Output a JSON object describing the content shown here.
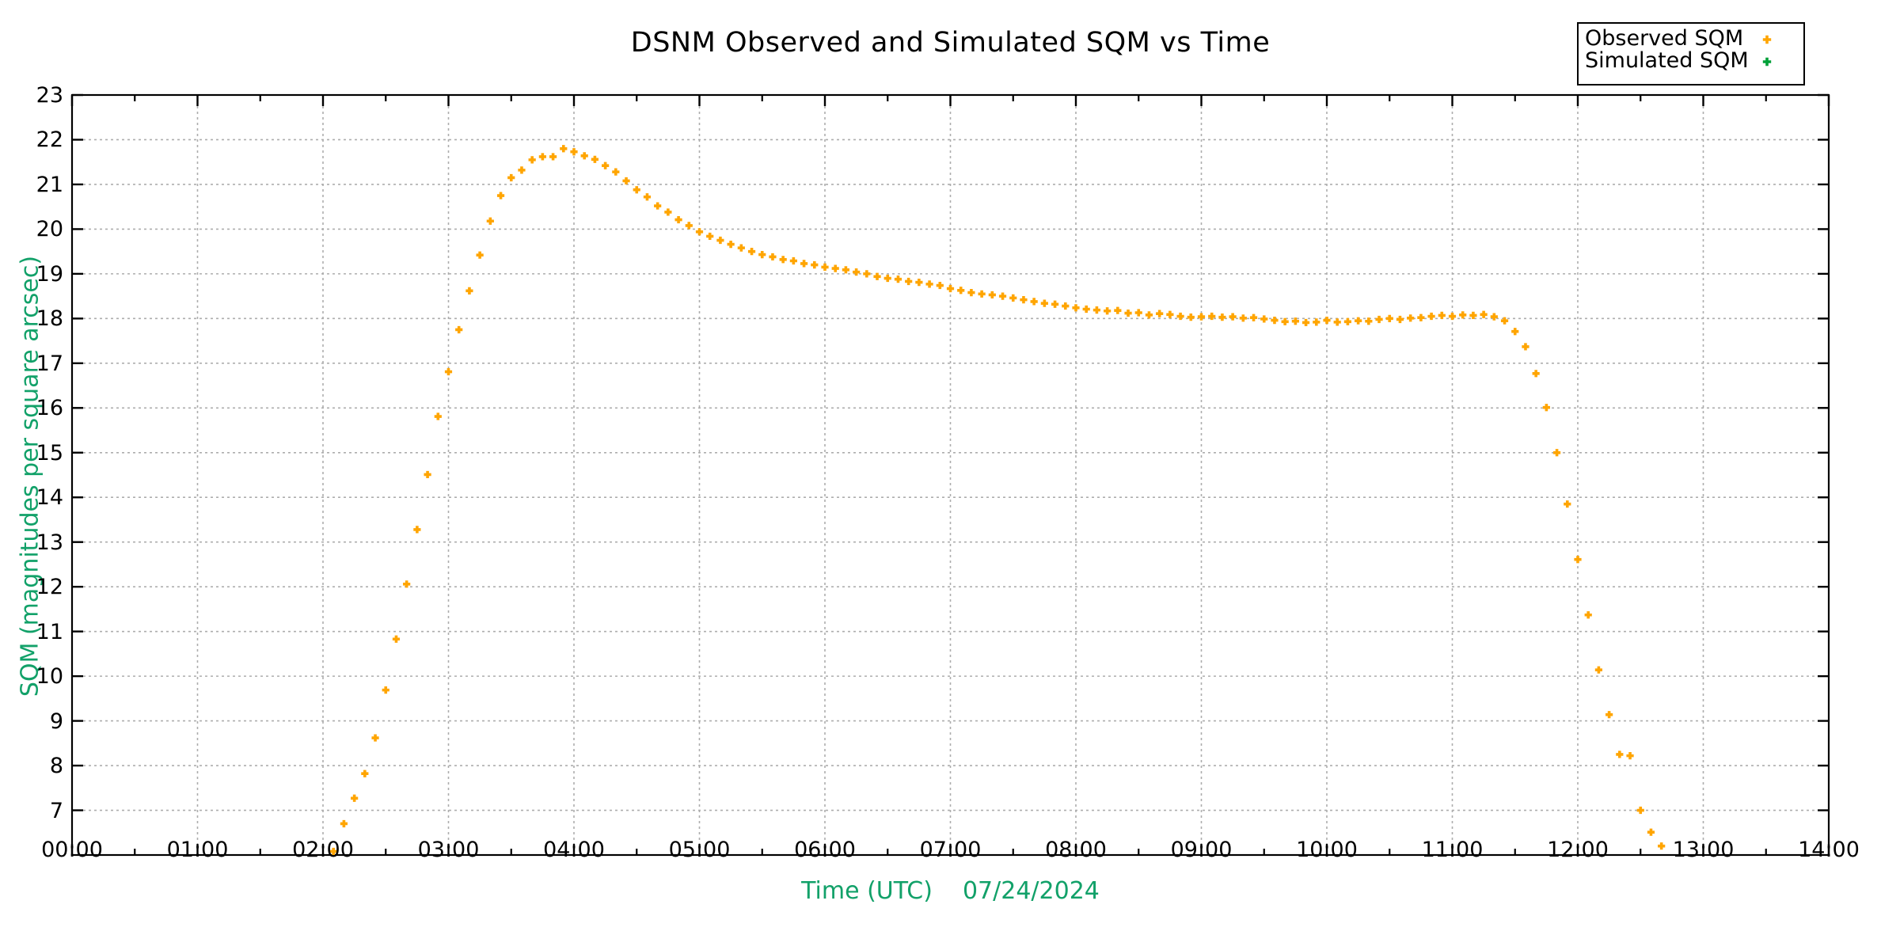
{
  "title": "DSNM Observed and Simulated SQM vs Time",
  "axes": {
    "x_label": "Time (UTC)",
    "x_date": "07/24/2024",
    "y_label": "SQM (magnitudes per square arcsec)",
    "x_ticks": [
      "00:00",
      "01:00",
      "02:00",
      "03:00",
      "04:00",
      "05:00",
      "06:00",
      "07:00",
      "08:00",
      "09:00",
      "10:00",
      "11:00",
      "12:00",
      "13:00",
      "14:00"
    ],
    "y_ticks": [
      7,
      8,
      9,
      10,
      11,
      12,
      13,
      14,
      15,
      16,
      17,
      18,
      19,
      20,
      21,
      22,
      23
    ]
  },
  "legend": {
    "items": [
      {
        "label": "Observed SQM",
        "color": "#FFA500"
      },
      {
        "label": "Simulated SQM",
        "color": "#00A038"
      }
    ]
  },
  "colors": {
    "observed": "#FFA500",
    "simulated": "#00A038",
    "axis_label_green": "#12A169",
    "grid": "#ADADAD",
    "border": "#000000",
    "background": "#FFFFFF"
  },
  "chart_data": {
    "type": "scatter",
    "title": "DSNM Observed and Simulated SQM vs Time",
    "xlabel": "Time (UTC)   07/24/2024",
    "ylabel": "SQM (magnitudes per square arcsec)",
    "xlim_hours": [
      0,
      14
    ],
    "ylim": [
      6,
      23
    ],
    "grid": true,
    "legend_position": "top-right",
    "marker": "small filled plus-dot",
    "point_interval_minutes": 5,
    "series": [
      {
        "name": "Observed SQM",
        "color": "#FFA500",
        "points": [
          [
            "02:05",
            6.08
          ],
          [
            "02:10",
            6.7
          ],
          [
            "02:15",
            7.27
          ],
          [
            "02:20",
            7.82
          ],
          [
            "02:25",
            8.62
          ],
          [
            "02:30",
            9.69
          ],
          [
            "02:35",
            10.83
          ],
          [
            "02:40",
            12.06
          ],
          [
            "02:45",
            13.28
          ],
          [
            "02:50",
            14.51
          ],
          [
            "02:55",
            15.81
          ],
          [
            "03:00",
            16.81
          ],
          [
            "03:05",
            17.75
          ],
          [
            "03:10",
            18.62
          ],
          [
            "03:15",
            19.42
          ],
          [
            "03:20",
            20.18
          ],
          [
            "03:25",
            20.75
          ],
          [
            "03:30",
            21.15
          ],
          [
            "03:35",
            21.32
          ],
          [
            "03:40",
            21.55
          ],
          [
            "03:45",
            21.62
          ],
          [
            "03:50",
            21.62
          ],
          [
            "03:55",
            21.8
          ],
          [
            "04:00",
            21.73
          ],
          [
            "04:05",
            21.64
          ],
          [
            "04:10",
            21.56
          ],
          [
            "04:15",
            21.42
          ],
          [
            "04:20",
            21.28
          ],
          [
            "04:25",
            21.08
          ],
          [
            "04:30",
            20.88
          ],
          [
            "04:35",
            20.72
          ],
          [
            "04:40",
            20.52
          ],
          [
            "04:45",
            20.38
          ],
          [
            "04:50",
            20.21
          ],
          [
            "04:55",
            20.08
          ],
          [
            "05:00",
            19.94
          ],
          [
            "05:05",
            19.84
          ],
          [
            "05:10",
            19.75
          ],
          [
            "05:15",
            19.66
          ],
          [
            "05:20",
            19.58
          ],
          [
            "05:25",
            19.5
          ],
          [
            "05:30",
            19.43
          ],
          [
            "05:35",
            19.38
          ],
          [
            "05:40",
            19.32
          ],
          [
            "05:45",
            19.29
          ],
          [
            "05:50",
            19.23
          ],
          [
            "05:55",
            19.2
          ],
          [
            "06:00",
            19.15
          ],
          [
            "06:05",
            19.12
          ],
          [
            "06:10",
            19.09
          ],
          [
            "06:15",
            19.04
          ],
          [
            "06:20",
            19.0
          ],
          [
            "06:25",
            18.94
          ],
          [
            "06:30",
            18.9
          ],
          [
            "06:35",
            18.88
          ],
          [
            "06:40",
            18.83
          ],
          [
            "06:45",
            18.81
          ],
          [
            "06:50",
            18.77
          ],
          [
            "06:55",
            18.74
          ],
          [
            "07:00",
            18.67
          ],
          [
            "07:05",
            18.63
          ],
          [
            "07:10",
            18.58
          ],
          [
            "07:15",
            18.55
          ],
          [
            "07:20",
            18.53
          ],
          [
            "07:25",
            18.5
          ],
          [
            "07:30",
            18.46
          ],
          [
            "07:35",
            18.42
          ],
          [
            "07:40",
            18.38
          ],
          [
            "07:45",
            18.34
          ],
          [
            "07:50",
            18.32
          ],
          [
            "07:55",
            18.28
          ],
          [
            "08:00",
            18.24
          ],
          [
            "08:05",
            18.21
          ],
          [
            "08:10",
            18.19
          ],
          [
            "08:15",
            18.17
          ],
          [
            "08:20",
            18.18
          ],
          [
            "08:25",
            18.12
          ],
          [
            "08:30",
            18.13
          ],
          [
            "08:35",
            18.08
          ],
          [
            "08:40",
            18.11
          ],
          [
            "08:45",
            18.09
          ],
          [
            "08:50",
            18.05
          ],
          [
            "08:55",
            18.03
          ],
          [
            "09:00",
            18.04
          ],
          [
            "09:05",
            18.05
          ],
          [
            "09:10",
            18.03
          ],
          [
            "09:15",
            18.04
          ],
          [
            "09:20",
            18.01
          ],
          [
            "09:25",
            18.02
          ],
          [
            "09:30",
            17.99
          ],
          [
            "09:35",
            17.96
          ],
          [
            "09:40",
            17.93
          ],
          [
            "09:45",
            17.94
          ],
          [
            "09:50",
            17.91
          ],
          [
            "09:55",
            17.92
          ],
          [
            "10:00",
            17.96
          ],
          [
            "10:05",
            17.92
          ],
          [
            "10:10",
            17.93
          ],
          [
            "10:15",
            17.95
          ],
          [
            "10:20",
            17.94
          ],
          [
            "10:25",
            17.98
          ],
          [
            "10:30",
            18.0
          ],
          [
            "10:35",
            17.98
          ],
          [
            "10:40",
            18.01
          ],
          [
            "10:45",
            18.02
          ],
          [
            "10:50",
            18.05
          ],
          [
            "10:55",
            18.07
          ],
          [
            "11:00",
            18.05
          ],
          [
            "11:05",
            18.08
          ],
          [
            "11:10",
            18.07
          ],
          [
            "11:15",
            18.09
          ],
          [
            "11:20",
            18.04
          ],
          [
            "11:25",
            17.95
          ],
          [
            "11:30",
            17.71
          ],
          [
            "11:35",
            17.37
          ],
          [
            "11:40",
            16.77
          ],
          [
            "11:45",
            16.01
          ],
          [
            "11:50",
            15.0
          ],
          [
            "11:55",
            13.85
          ],
          [
            "12:00",
            12.61
          ],
          [
            "12:05",
            11.37
          ],
          [
            "12:10",
            10.14
          ],
          [
            "12:15",
            9.14
          ],
          [
            "12:20",
            8.25
          ],
          [
            "12:25",
            8.22
          ],
          [
            "12:30",
            7.0
          ],
          [
            "12:35",
            6.51
          ],
          [
            "12:40",
            6.2
          ]
        ]
      },
      {
        "name": "Simulated SQM",
        "color": "#00A038",
        "points": []
      }
    ]
  }
}
